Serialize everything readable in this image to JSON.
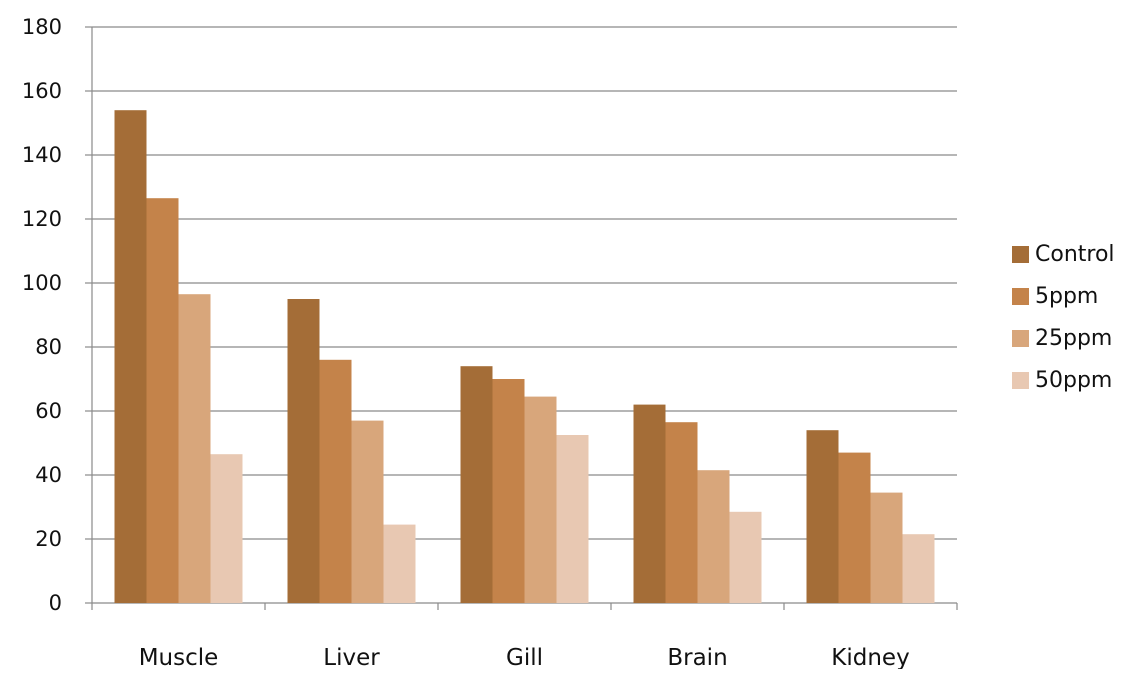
{
  "chart_data": {
    "type": "bar",
    "categories": [
      "Muscle",
      "Liver",
      "Gill",
      "Brain",
      "Kidney"
    ],
    "series": [
      {
        "name": "Control",
        "values": [
          154,
          95,
          74,
          62,
          54
        ],
        "color": "#A46D37"
      },
      {
        "name": "5ppm",
        "values": [
          126.5,
          76,
          70,
          56.5,
          47
        ],
        "color": "#C4834A"
      },
      {
        "name": "25ppm",
        "values": [
          96.5,
          57,
          64.5,
          41.5,
          34.5
        ],
        "color": "#D8A67B"
      },
      {
        "name": "50ppm",
        "values": [
          46.5,
          24.5,
          52.5,
          28.5,
          21.5
        ],
        "color": "#E8C8B2"
      }
    ],
    "ylim": [
      0,
      180
    ],
    "yticks": [
      0,
      20,
      40,
      60,
      80,
      100,
      120,
      140,
      160,
      180
    ],
    "grid": true,
    "legend_position": "right",
    "title": "",
    "xlabel": "",
    "ylabel": ""
  }
}
